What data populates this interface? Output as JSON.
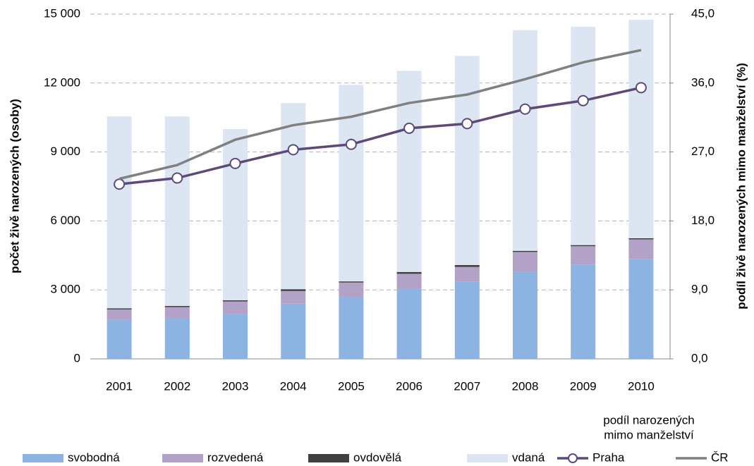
{
  "chart_data": {
    "type": "bar",
    "stacked": true,
    "ylabel": "počet živě narozených (osoby)",
    "y2label": "podíl živě narozených mimo manželství (%)",
    "legend_title": [
      "podíl narozených",
      "mimo manželství"
    ],
    "categories": [
      "2001",
      "2002",
      "2003",
      "2004",
      "2005",
      "2006",
      "2007",
      "2008",
      "2009",
      "2010"
    ],
    "series": [
      {
        "name": "svobodná",
        "color": "#8db3e2",
        "values": [
          1700,
          1750,
          1950,
          2400,
          2700,
          3050,
          3350,
          3800,
          4100,
          4350
        ]
      },
      {
        "name": "rozvedená",
        "color": "#b3a2c7",
        "values": [
          450,
          500,
          550,
          550,
          620,
          650,
          650,
          850,
          800,
          850
        ]
      },
      {
        "name": "ovdovělá",
        "color": "#404040",
        "values": [
          50,
          50,
          50,
          80,
          50,
          80,
          80,
          50,
          50,
          50
        ]
      },
      {
        "name": "vdaná",
        "color": "#dce6f2",
        "values": [
          8350,
          8250,
          7450,
          8100,
          8550,
          8750,
          9100,
          9600,
          9500,
          9500
        ]
      },
      {
        "name": "Praha",
        "color": "#5f497a",
        "type": "line",
        "axis": "y2",
        "marker": "circle",
        "values": [
          22.8,
          23.6,
          25.5,
          27.3,
          28.0,
          30.1,
          30.7,
          32.6,
          33.7,
          35.4
        ]
      },
      {
        "name": "ČR",
        "color": "#808080",
        "type": "line",
        "axis": "y2",
        "values": [
          23.5,
          25.3,
          28.6,
          30.5,
          31.6,
          33.4,
          34.5,
          36.5,
          38.7,
          40.3
        ]
      }
    ],
    "ylim": [
      0,
      15000
    ],
    "yticks": [
      0,
      {
        "value": 3000,
        "label": "3 000"
      },
      {
        "value": 6000,
        "label": "6 000"
      },
      {
        "value": 9000,
        "label": "9 000"
      },
      {
        "value": 12000,
        "label": "12 000"
      },
      {
        "value": 15000,
        "label": "15 000"
      }
    ],
    "y2lim": [
      0,
      45
    ],
    "y2ticks": [
      {
        "value": 0,
        "label": "0,0"
      },
      {
        "value": 9,
        "label": "9,0"
      },
      {
        "value": 18,
        "label": "18,0"
      },
      {
        "value": 27,
        "label": "27,0"
      },
      {
        "value": 36,
        "label": "36,0"
      },
      {
        "value": 45,
        "label": "45,0"
      }
    ],
    "grid": true,
    "legend": "bottom"
  }
}
